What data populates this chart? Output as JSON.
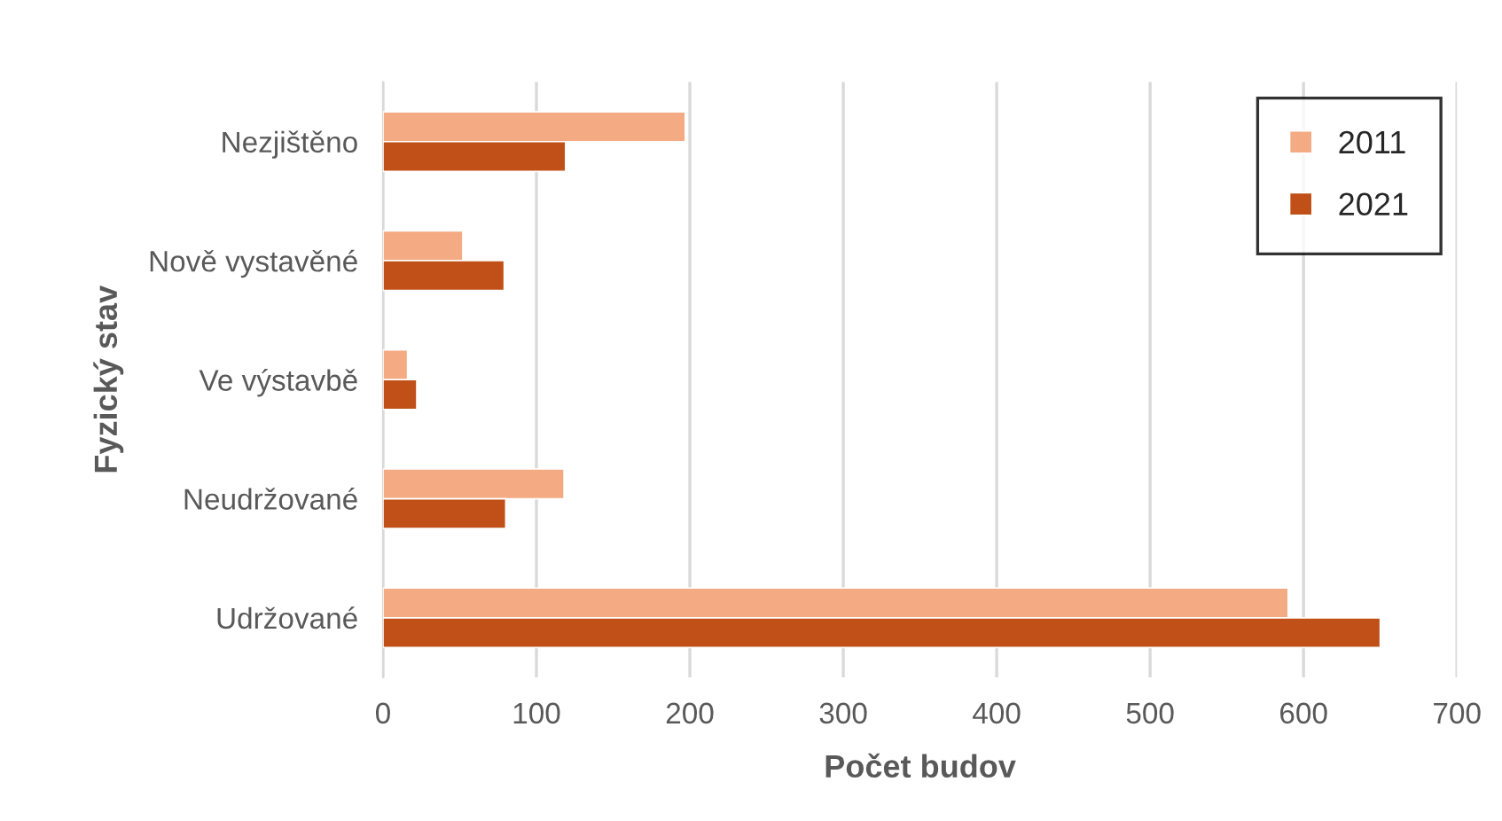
{
  "chart_data": {
    "type": "bar",
    "orientation": "horizontal",
    "xlabel": "Počet budov",
    "ylabel": "Fyzický stav",
    "categories": [
      "Nezjištěno",
      "Nově vystavěné",
      "Ve výstavbě",
      "Neudržované",
      "Udržované"
    ],
    "series": [
      {
        "name": "2011",
        "color": "#f4aa82",
        "values": [
          197,
          52,
          16,
          118,
          590
        ]
      },
      {
        "name": "2021",
        "color": "#c05017",
        "values": [
          119,
          79,
          22,
          80,
          650
        ]
      }
    ],
    "xlim": [
      0,
      700
    ],
    "xticks": [
      0,
      100,
      200,
      300,
      400,
      500,
      600,
      700
    ],
    "grid": "x",
    "legend": "top right"
  }
}
